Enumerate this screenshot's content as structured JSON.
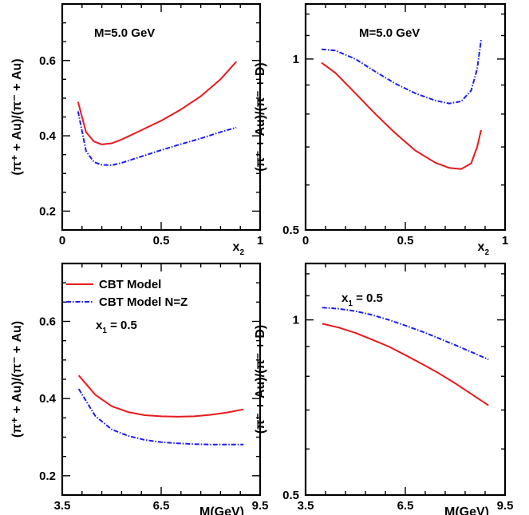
{
  "colors": {
    "cbt": "#e8191c",
    "cbt_nz": "#1d1df0"
  },
  "legend": {
    "cbt_label": "CBT Model",
    "cbt_nz_label": "CBT Model N=Z"
  },
  "chart_data": [
    {
      "type": "line",
      "x_axis": "x2",
      "x": [
        0.08,
        0.12,
        0.16,
        0.2,
        0.25,
        0.3,
        0.4,
        0.5,
        0.6,
        0.7,
        0.8,
        0.88
      ],
      "xlim": [
        0,
        1
      ],
      "ylim": [
        0.15,
        0.75
      ],
      "xticks": [
        "0",
        "0.5",
        "1"
      ],
      "yticks": [
        "0.2",
        "0.4",
        "0.6"
      ],
      "xlabel": "x",
      "xlabel_sub": "2",
      "ylabel": "(π⁺ + Au)/(π⁻ + Au)",
      "annotation": "M=5.0 GeV",
      "series": [
        {
          "name": "CBT Model",
          "values": [
            0.49,
            0.41,
            0.385,
            0.377,
            0.38,
            0.39,
            0.415,
            0.44,
            0.47,
            0.505,
            0.55,
            0.597
          ]
        },
        {
          "name": "CBT Model N=Z",
          "values": [
            0.465,
            0.36,
            0.33,
            0.323,
            0.322,
            0.328,
            0.345,
            0.362,
            0.378,
            0.393,
            0.41,
            0.422
          ]
        }
      ]
    },
    {
      "type": "line",
      "x_axis": "x2",
      "x": [
        0.08,
        0.15,
        0.25,
        0.35,
        0.45,
        0.55,
        0.65,
        0.72,
        0.78,
        0.83,
        0.86,
        0.88
      ],
      "xlim": [
        0,
        1
      ],
      "ylim": [
        0.5,
        1.25
      ],
      "yscale": "log",
      "xticks": [
        "0",
        "0.5",
        "1"
      ],
      "yticks": [
        "0.5",
        "1"
      ],
      "xlabel": "x",
      "xlabel_sub": "2",
      "ylabel": "(π⁻ + Au)/(π⁻ + D)",
      "annotation": "M=5.0 GeV",
      "series": [
        {
          "name": "CBT Model",
          "values": [
            0.985,
            0.945,
            0.87,
            0.8,
            0.74,
            0.69,
            0.657,
            0.643,
            0.64,
            0.655,
            0.7,
            0.75
          ]
        },
        {
          "name": "CBT Model N=Z",
          "values": [
            1.04,
            1.035,
            1.0,
            0.95,
            0.905,
            0.87,
            0.845,
            0.835,
            0.842,
            0.88,
            0.96,
            1.08
          ]
        }
      ]
    },
    {
      "type": "line",
      "x_axis": "M",
      "x": [
        4.0,
        4.5,
        5.0,
        5.5,
        6.0,
        6.5,
        7.0,
        7.5,
        8.0,
        8.5,
        9.0
      ],
      "xlim": [
        3.5,
        9.5
      ],
      "ylim": [
        0.15,
        0.75
      ],
      "xticks": [
        "3.5",
        "6.5",
        "9.5"
      ],
      "yticks": [
        "0.2",
        "0.4",
        "0.6"
      ],
      "xlabel": "M(GeV)",
      "ylabel": "(π⁺ + Au)/(π⁻ + Au)",
      "annotation": "x",
      "annotation_sub": "1",
      "annotation_rest": " = 0.5",
      "series": [
        {
          "name": "CBT Model",
          "values": [
            0.46,
            0.41,
            0.38,
            0.365,
            0.357,
            0.354,
            0.353,
            0.354,
            0.358,
            0.364,
            0.372
          ]
        },
        {
          "name": "CBT Model N=Z",
          "values": [
            0.425,
            0.355,
            0.32,
            0.303,
            0.293,
            0.287,
            0.284,
            0.282,
            0.281,
            0.281,
            0.281
          ]
        }
      ]
    },
    {
      "type": "line",
      "x_axis": "M",
      "x": [
        4.0,
        4.5,
        5.0,
        5.5,
        6.0,
        6.5,
        7.0,
        7.5,
        8.0,
        8.5,
        9.0
      ],
      "xlim": [
        3.5,
        9.5
      ],
      "ylim": [
        0.5,
        1.25
      ],
      "yscale": "log",
      "xticks": [
        "3.5",
        "6.5",
        "9.5"
      ],
      "yticks": [
        "0.5",
        "1"
      ],
      "xlabel": "M(GeV)",
      "ylabel": "(π⁻ + Au)/(π⁻ + D)",
      "annotation": "x",
      "annotation_sub": "1",
      "annotation_rest": " = 0.5",
      "series": [
        {
          "name": "CBT Model",
          "values": [
            0.985,
            0.97,
            0.95,
            0.925,
            0.9,
            0.87,
            0.84,
            0.81,
            0.778,
            0.745,
            0.713
          ]
        },
        {
          "name": "CBT Model N=Z",
          "values": [
            1.05,
            1.045,
            1.035,
            1.02,
            1.0,
            0.978,
            0.955,
            0.93,
            0.905,
            0.88,
            0.855
          ]
        }
      ]
    }
  ]
}
